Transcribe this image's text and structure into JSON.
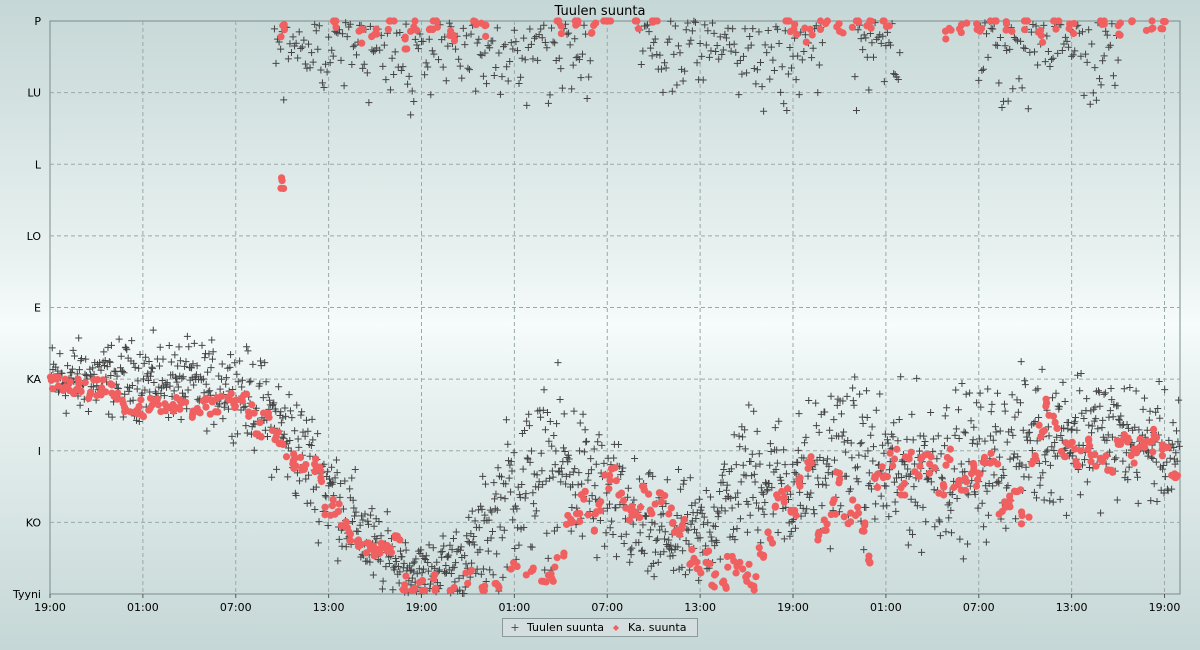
{
  "chart_data": {
    "type": "scatter",
    "title": "Tuulen suunta",
    "y_categories": [
      "Tyyni",
      "KO",
      "I",
      "KA",
      "E",
      "LO",
      "L",
      "LU",
      "P"
    ],
    "x_ticks": [
      "19:00",
      "01:00",
      "07:00",
      "13:00",
      "19:00",
      "01:00",
      "07:00",
      "13:00",
      "19:00",
      "01:00",
      "07:00",
      "13:00",
      "19:00"
    ],
    "x_range_hours": [
      0,
      73
    ],
    "grid": true,
    "legend_position": "bottom-center",
    "series": [
      {
        "name": "Tuulen suunta",
        "marker": "plus",
        "color": "#444444",
        "trend": [
          {
            "x": 0,
            "y": 3.0,
            "spread": 0.55
          },
          {
            "x": 6,
            "y": 3.0,
            "spread": 0.55
          },
          {
            "x": 12,
            "y": 2.9,
            "spread": 0.6
          },
          {
            "x": 15,
            "y": 2.3,
            "spread": 0.8
          },
          {
            "x": 18,
            "y": 1.5,
            "spread": 0.8
          },
          {
            "x": 21,
            "y": 0.6,
            "spread": 0.6
          },
          {
            "x": 24,
            "y": 0.3,
            "spread": 0.4
          },
          {
            "x": 27,
            "y": 0.5,
            "spread": 0.6
          },
          {
            "x": 30,
            "y": 1.5,
            "spread": 1.2
          },
          {
            "x": 33,
            "y": 1.8,
            "spread": 1.2
          },
          {
            "x": 36,
            "y": 1.3,
            "spread": 1.0
          },
          {
            "x": 39,
            "y": 0.8,
            "spread": 0.8
          },
          {
            "x": 42,
            "y": 0.8,
            "spread": 0.8
          },
          {
            "x": 45,
            "y": 1.7,
            "spread": 1.0
          },
          {
            "x": 48,
            "y": 1.5,
            "spread": 1.0
          },
          {
            "x": 51,
            "y": 2.0,
            "spread": 1.1
          },
          {
            "x": 54,
            "y": 1.7,
            "spread": 1.1
          },
          {
            "x": 57,
            "y": 1.8,
            "spread": 1.1
          },
          {
            "x": 60,
            "y": 1.8,
            "spread": 1.1
          },
          {
            "x": 63,
            "y": 2.1,
            "spread": 1.0
          },
          {
            "x": 66,
            "y": 2.3,
            "spread": 1.0
          },
          {
            "x": 69,
            "y": 2.2,
            "spread": 0.9
          },
          {
            "x": 72,
            "y": 2.0,
            "spread": 0.8
          }
        ],
        "north_band": {
          "x_ranges": [
            [
              14.5,
              35
            ],
            [
              38,
              50
            ],
            [
              52,
              55
            ],
            [
              60,
              69
            ]
          ],
          "y_min": 6.8,
          "y_max": 8.0
        }
      },
      {
        "name": "Ka. suunta",
        "marker": "dot",
        "color": "#f06060",
        "points": [
          [
            0.1,
            2.95
          ],
          [
            0.5,
            2.92
          ],
          [
            1,
            2.88
          ],
          [
            1.5,
            2.85
          ],
          [
            2,
            2.88
          ],
          [
            2.5,
            2.85
          ],
          [
            3,
            2.88
          ],
          [
            3.5,
            2.87
          ],
          [
            4,
            2.85
          ],
          [
            4.5,
            2.75
          ],
          [
            5,
            2.65
          ],
          [
            5.5,
            2.6
          ],
          [
            6,
            2.6
          ],
          [
            6.5,
            2.63
          ],
          [
            7,
            2.65
          ],
          [
            7.5,
            2.62
          ],
          [
            8,
            2.62
          ],
          [
            8.5,
            2.6
          ],
          [
            9,
            2.58
          ],
          [
            9.5,
            2.65
          ],
          [
            10,
            2.65
          ],
          [
            10.5,
            2.6
          ],
          [
            11,
            2.65
          ],
          [
            11.5,
            2.68
          ],
          [
            12,
            2.65
          ],
          [
            12.5,
            2.7
          ],
          [
            13,
            2.55
          ],
          [
            13.5,
            2.3
          ],
          [
            14,
            2.45
          ],
          [
            14.5,
            2.2
          ],
          [
            15,
            2.05
          ],
          [
            15.5,
            1.9
          ],
          [
            16,
            1.85
          ],
          [
            16.5,
            1.75
          ],
          [
            17,
            1.8
          ],
          [
            17.5,
            1.65
          ],
          [
            18,
            1.2
          ],
          [
            18.5,
            1.2
          ],
          [
            19,
            1.0
          ],
          [
            19.5,
            0.85
          ],
          [
            20,
            0.65
          ],
          [
            20.5,
            0.65
          ],
          [
            21,
            0.65
          ],
          [
            21.5,
            0.6
          ],
          [
            22,
            0.7
          ],
          [
            22.5,
            0.85
          ],
          [
            23,
            0.15
          ],
          [
            23.5,
            0.05
          ],
          [
            24,
            0.1
          ],
          [
            25,
            0.15
          ],
          [
            26,
            0.05
          ],
          [
            27,
            0.25
          ],
          [
            28,
            0.1
          ],
          [
            29,
            0.2
          ],
          [
            30,
            0.35
          ],
          [
            31,
            0.3
          ],
          [
            32,
            0.25
          ],
          [
            32.5,
            0.3
          ],
          [
            33,
            0.6
          ],
          [
            33.5,
            1.0
          ],
          [
            34,
            1.1
          ],
          [
            34.5,
            1.4
          ],
          [
            35,
            1.0
          ],
          [
            35.5,
            1.2
          ],
          [
            36,
            1.55
          ],
          [
            36.5,
            1.7
          ],
          [
            37,
            1.3
          ],
          [
            37.5,
            1.1
          ],
          [
            38,
            1.15
          ],
          [
            38.5,
            1.5
          ],
          [
            39,
            1.2
          ],
          [
            39.5,
            1.4
          ],
          [
            40,
            1.1
          ],
          [
            40.5,
            0.9
          ],
          [
            41,
            1.0
          ],
          [
            41.5,
            0.5
          ],
          [
            42,
            0.4
          ],
          [
            42.5,
            0.5
          ],
          [
            43,
            0.2
          ],
          [
            43.5,
            0.2
          ],
          [
            44,
            0.45
          ],
          [
            44.5,
            0.35
          ],
          [
            45,
            0.3
          ],
          [
            45.5,
            0.15
          ],
          [
            46,
            0.6
          ],
          [
            46.5,
            0.8
          ],
          [
            47,
            1.3
          ],
          [
            47.5,
            1.4
          ],
          [
            48,
            1.2
          ],
          [
            48.5,
            1.6
          ],
          [
            49,
            1.8
          ],
          [
            49.5,
            0.8
          ],
          [
            50,
            1.0
          ],
          [
            50.5,
            1.2
          ],
          [
            51,
            1.6
          ],
          [
            51.5,
            1.1
          ],
          [
            52,
            1.2
          ],
          [
            52.5,
            0.9
          ],
          [
            53,
            0.5
          ],
          [
            53.5,
            1.6
          ],
          [
            54,
            1.7
          ],
          [
            54.5,
            1.9
          ],
          [
            55,
            1.5
          ],
          [
            55.5,
            1.9
          ],
          [
            56,
            1.7
          ],
          [
            56.5,
            1.9
          ],
          [
            57,
            1.8
          ],
          [
            57.5,
            1.5
          ],
          [
            58,
            1.9
          ],
          [
            58.5,
            1.6
          ],
          [
            59,
            1.5
          ],
          [
            59.5,
            1.8
          ],
          [
            60,
            1.6
          ],
          [
            60.5,
            1.9
          ],
          [
            61,
            1.85
          ],
          [
            61.5,
            1.2
          ],
          [
            62,
            1.3
          ],
          [
            62.5,
            1.5
          ],
          [
            63,
            1.1
          ],
          [
            63.5,
            1.9
          ],
          [
            64,
            2.3
          ],
          [
            64.5,
            2.6
          ],
          [
            65,
            2.4
          ],
          [
            65.5,
            2.0
          ],
          [
            66,
            2.1
          ],
          [
            66.5,
            1.9
          ],
          [
            67,
            2.05
          ],
          [
            67.5,
            1.85
          ],
          [
            68,
            1.85
          ],
          [
            68.5,
            1.75
          ],
          [
            69,
            2.2
          ],
          [
            69.5,
            2.1
          ],
          [
            70,
            1.95
          ],
          [
            70.5,
            2.1
          ],
          [
            71,
            2.05
          ],
          [
            71.5,
            2.2
          ],
          [
            72,
            2.0
          ],
          [
            72.5,
            1.7
          ],
          [
            73,
            1.55
          ],
          [
            15,
            5.7
          ],
          [
            15,
            7.9
          ],
          [
            18.5,
            8.0
          ],
          [
            20,
            7.8
          ],
          [
            21,
            7.85
          ],
          [
            22,
            8.0
          ],
          [
            23,
            7.7
          ],
          [
            23.5,
            7.9
          ],
          [
            24.5,
            7.9
          ],
          [
            25,
            8.0
          ],
          [
            26,
            7.8
          ],
          [
            27.5,
            8.0
          ],
          [
            28,
            7.9
          ],
          [
            33,
            7.9
          ],
          [
            34,
            8.0
          ],
          [
            35,
            7.85
          ],
          [
            36,
            8.0
          ],
          [
            38,
            8.0
          ],
          [
            39,
            8.0
          ],
          [
            47.5,
            8.0
          ],
          [
            48,
            7.9
          ],
          [
            49,
            7.8
          ],
          [
            50,
            8.0
          ],
          [
            51,
            7.9
          ],
          [
            52,
            8.0
          ],
          [
            53,
            7.95
          ],
          [
            54,
            8.0
          ],
          [
            58,
            7.85
          ],
          [
            59,
            7.9
          ],
          [
            60,
            7.9
          ],
          [
            61,
            8.0
          ],
          [
            62,
            7.9
          ],
          [
            63,
            8.0
          ],
          [
            64,
            7.8
          ],
          [
            65,
            7.9
          ],
          [
            66,
            7.85
          ],
          [
            68,
            8.0
          ],
          [
            69,
            7.9
          ],
          [
            70,
            8.0
          ],
          [
            71,
            7.95
          ],
          [
            72,
            8.0
          ]
        ]
      }
    ]
  }
}
